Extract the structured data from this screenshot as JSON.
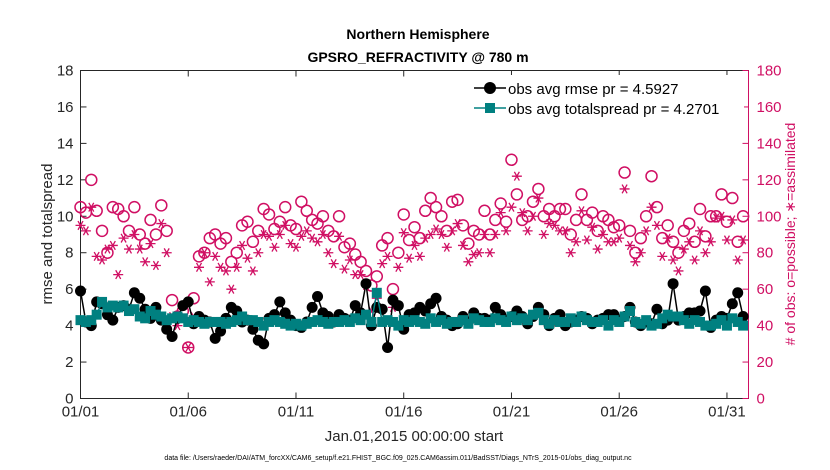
{
  "chart_data": {
    "type": "line",
    "title": "Northern Hemisphere",
    "subtitle": "GPSRO_REFRACTIVITY @ 780 m",
    "xlabel": "Jan.01,2015 00:00:00 start",
    "ylabel": "rmse and totalspread",
    "y2label": "# of obs: o=possible; ∗=assimilated",
    "footer": "data file: /Users/raeder/DAI/ATM_forcXX/CAM6_setup/f.e21.FHIST_BGC.f09_025.CAM6assim.011/BadSST/Diags_NTrS_2015-01/obs_diag_output.nc",
    "xlim": [
      1,
      32
    ],
    "ylim": [
      0,
      18
    ],
    "y2lim": [
      0,
      180
    ],
    "xticks": [
      1,
      6,
      11,
      16,
      21,
      26,
      31
    ],
    "xticklabels": [
      "01/01",
      "01/06",
      "01/11",
      "01/16",
      "01/21",
      "01/26",
      "01/31"
    ],
    "yticks": [
      0,
      2,
      4,
      6,
      8,
      10,
      12,
      14,
      16,
      18
    ],
    "y2ticks": [
      0,
      20,
      40,
      60,
      80,
      100,
      120,
      140,
      160,
      180
    ],
    "legend_position": "top-right",
    "colors": {
      "rmse": "#000000",
      "spread": "#008080",
      "obs": "#d00f63",
      "axis": "#262626"
    },
    "series": [
      {
        "name": "obs avg rmse pr = 4.5927",
        "axis": "left",
        "marker": "circle",
        "x": [
          1.0,
          1.25,
          1.5,
          1.75,
          2.0,
          2.25,
          2.5,
          2.75,
          3.0,
          3.25,
          3.5,
          3.75,
          4.0,
          4.25,
          4.5,
          4.75,
          5.0,
          5.25,
          5.5,
          5.75,
          6.0,
          6.25,
          6.5,
          6.75,
          7.0,
          7.25,
          7.5,
          7.75,
          8.0,
          8.25,
          8.5,
          8.75,
          9.0,
          9.25,
          9.5,
          9.75,
          10.0,
          10.25,
          10.5,
          10.75,
          11.0,
          11.25,
          11.5,
          11.75,
          12.0,
          12.25,
          12.5,
          12.75,
          13.0,
          13.25,
          13.5,
          13.75,
          14.0,
          14.25,
          14.5,
          14.75,
          15.0,
          15.25,
          15.5,
          15.75,
          16.0,
          16.25,
          16.5,
          16.75,
          17.0,
          17.25,
          17.5,
          17.75,
          18.0,
          18.25,
          18.5,
          18.75,
          19.0,
          19.25,
          19.5,
          19.75,
          20.0,
          20.25,
          20.5,
          20.75,
          21.0,
          21.25,
          21.5,
          21.75,
          22.0,
          22.25,
          22.5,
          22.75,
          23.0,
          23.25,
          23.5,
          23.75,
          24.0,
          24.25,
          24.5,
          24.75,
          25.0,
          25.25,
          25.5,
          25.75,
          26.0,
          26.25,
          26.5,
          26.75,
          27.0,
          27.25,
          27.5,
          27.75,
          28.0,
          28.25,
          28.5,
          28.75,
          29.0,
          29.25,
          29.5,
          29.75,
          30.0,
          30.25,
          30.5,
          30.75,
          31.0,
          31.25,
          31.5,
          31.75
        ],
        "values": [
          5.9,
          4.2,
          4.0,
          5.3,
          5.2,
          4.6,
          4.3,
          5.0,
          5.1,
          4.9,
          5.8,
          5.5,
          4.9,
          4.4,
          5.0,
          4.3,
          3.8,
          3.4,
          4.4,
          5.1,
          5.3,
          4.1,
          4.5,
          4.3,
          4.2,
          3.3,
          3.7,
          4.4,
          5.0,
          4.8,
          4.2,
          4.3,
          3.8,
          3.2,
          3.0,
          4.4,
          4.6,
          5.3,
          4.7,
          4.3,
          4.0,
          3.9,
          4.2,
          5.0,
          5.6,
          4.7,
          4.5,
          4.2,
          4.6,
          4.4,
          4.3,
          5.1,
          4.7,
          6.3,
          4.0,
          5.0,
          4.9,
          2.8,
          5.4,
          5.1,
          3.8,
          4.6,
          4.7,
          5.0,
          4.8,
          5.2,
          5.5,
          4.5,
          4.3,
          4.0,
          4.1,
          4.5,
          4.2,
          4.7,
          4.4,
          4.4,
          4.3,
          5.0,
          4.6,
          4.3,
          4.5,
          4.8,
          4.5,
          4.1,
          4.5,
          5.0,
          4.6,
          4.0,
          4.4,
          4.6,
          4.0,
          4.2,
          4.3,
          4.5,
          4.4,
          4.1,
          4.3,
          4.4,
          4.6,
          4.6,
          4.3,
          4.5,
          5.0,
          4.2,
          4.0,
          4.2,
          4.1,
          4.9,
          4.1,
          4.3,
          6.3,
          4.3,
          4.5,
          4.7,
          4.7,
          4.8,
          5.9,
          3.9,
          4.3,
          4.5,
          4.4,
          5.2,
          5.8,
          4.5
        ]
      },
      {
        "name": "obs avg totalspread pr = 4.2701",
        "axis": "left",
        "marker": "square",
        "x": [
          1.0,
          1.25,
          1.5,
          1.75,
          2.0,
          2.25,
          2.5,
          2.75,
          3.0,
          3.25,
          3.5,
          3.75,
          4.0,
          4.25,
          4.5,
          4.75,
          5.0,
          5.25,
          5.5,
          5.75,
          6.0,
          6.25,
          6.5,
          6.75,
          7.0,
          7.25,
          7.5,
          7.75,
          8.0,
          8.25,
          8.5,
          8.75,
          9.0,
          9.25,
          9.5,
          9.75,
          10.0,
          10.25,
          10.5,
          10.75,
          11.0,
          11.25,
          11.5,
          11.75,
          12.0,
          12.25,
          12.5,
          12.75,
          13.0,
          13.25,
          13.5,
          13.75,
          14.0,
          14.25,
          14.5,
          14.75,
          15.0,
          15.25,
          15.5,
          15.75,
          16.0,
          16.25,
          16.5,
          16.75,
          17.0,
          17.25,
          17.5,
          17.75,
          18.0,
          18.25,
          18.5,
          18.75,
          19.0,
          19.25,
          19.5,
          19.75,
          20.0,
          20.25,
          20.5,
          20.75,
          21.0,
          21.25,
          21.5,
          21.75,
          22.0,
          22.25,
          22.5,
          22.75,
          23.0,
          23.25,
          23.5,
          23.75,
          24.0,
          24.25,
          24.5,
          24.75,
          25.0,
          25.25,
          25.5,
          25.75,
          26.0,
          26.25,
          26.5,
          26.75,
          27.0,
          27.25,
          27.5,
          27.75,
          28.0,
          28.25,
          28.5,
          28.75,
          29.0,
          29.25,
          29.5,
          29.75,
          30.0,
          30.25,
          30.5,
          30.75,
          31.0,
          31.25,
          31.5,
          31.75
        ],
        "values": [
          4.3,
          4.2,
          4.3,
          4.6,
          5.3,
          5.0,
          5.1,
          5.0,
          5.1,
          4.8,
          4.9,
          4.5,
          4.4,
          4.8,
          4.6,
          4.5,
          4.3,
          4.4,
          4.5,
          4.4,
          4.2,
          4.3,
          4.2,
          4.1,
          4.2,
          4.2,
          4.2,
          4.1,
          4.2,
          4.3,
          4.5,
          4.3,
          4.3,
          4.2,
          4.0,
          4.2,
          4.3,
          4.2,
          4.1,
          4.0,
          4.1,
          4.0,
          4.1,
          4.2,
          4.3,
          4.2,
          4.1,
          4.2,
          4.2,
          4.3,
          4.2,
          4.4,
          4.3,
          4.6,
          4.2,
          5.8,
          4.2,
          4.3,
          4.2,
          4.0,
          4.3,
          4.2,
          4.3,
          4.2,
          4.1,
          4.4,
          4.2,
          4.3,
          4.1,
          4.2,
          4.2,
          4.3,
          4.1,
          4.4,
          4.3,
          4.2,
          4.2,
          4.4,
          4.3,
          4.2,
          4.5,
          4.3,
          4.4,
          4.3,
          4.6,
          4.7,
          4.3,
          4.1,
          4.3,
          4.2,
          4.2,
          4.4,
          4.2,
          4.5,
          4.3,
          4.2,
          4.2,
          4.3,
          4.0,
          4.3,
          4.2,
          4.5,
          4.8,
          4.2,
          4.1,
          4.3,
          4.0,
          4.1,
          4.4,
          4.6,
          4.5,
          4.5,
          4.3,
          4.1,
          4.3,
          4.2,
          4.0,
          4.0,
          4.1,
          4.3,
          4.0,
          4.4,
          4.2,
          4.0
        ]
      },
      {
        "name": "# of obs possible",
        "axis": "right",
        "marker": "open-circle",
        "x": [
          1.0,
          1.25,
          1.5,
          1.75,
          2.0,
          2.25,
          2.5,
          2.75,
          3.0,
          3.25,
          3.5,
          3.75,
          4.0,
          4.25,
          4.5,
          4.75,
          5.0,
          5.25,
          5.5,
          5.75,
          6.0,
          6.25,
          6.5,
          6.75,
          7.0,
          7.25,
          7.5,
          7.75,
          8.0,
          8.25,
          8.5,
          8.75,
          9.0,
          9.25,
          9.5,
          9.75,
          10.0,
          10.25,
          10.5,
          10.75,
          11.0,
          11.25,
          11.5,
          11.75,
          12.0,
          12.25,
          12.5,
          12.75,
          13.0,
          13.25,
          13.5,
          13.75,
          14.0,
          14.25,
          14.5,
          14.75,
          15.0,
          15.25,
          15.5,
          15.75,
          16.0,
          16.25,
          16.5,
          16.75,
          17.0,
          17.25,
          17.5,
          17.75,
          18.0,
          18.25,
          18.5,
          18.75,
          19.0,
          19.25,
          19.5,
          19.75,
          20.0,
          20.25,
          20.5,
          20.75,
          21.0,
          21.25,
          21.5,
          21.75,
          22.0,
          22.25,
          22.5,
          22.75,
          23.0,
          23.25,
          23.5,
          23.75,
          24.0,
          24.25,
          24.5,
          24.75,
          25.0,
          25.25,
          25.5,
          25.75,
          26.0,
          26.25,
          26.5,
          26.75,
          27.0,
          27.25,
          27.5,
          27.75,
          28.0,
          28.25,
          28.5,
          28.75,
          29.0,
          29.25,
          29.5,
          29.75,
          30.0,
          30.25,
          30.5,
          30.75,
          31.0,
          31.25,
          31.5,
          31.75
        ],
        "values": [
          105,
          102,
          120,
          103,
          92,
          80,
          105,
          104,
          100,
          92,
          105,
          90,
          85,
          98,
          90,
          106,
          92,
          54,
          45,
          48,
          28,
          55,
          78,
          80,
          88,
          90,
          85,
          88,
          75,
          80,
          95,
          97,
          86,
          92,
          104,
          101,
          93,
          97,
          105,
          95,
          93,
          108,
          103,
          98,
          96,
          100,
          92,
          89,
          100,
          83,
          85,
          79,
          75,
          70,
          62,
          67,
          84,
          88,
          60,
          80,
          101,
          87,
          94,
          88,
          103,
          110,
          105,
          100,
          92,
          108,
          109,
          95,
          85,
          92,
          90,
          103,
          90,
          98,
          107,
          97,
          131,
          112,
          98,
          100,
          108,
          115,
          100,
          104,
          100,
          104,
          104,
          90,
          98,
          112,
          98,
          102,
          92,
          100,
          98,
          94,
          95,
          124,
          92,
          80,
          88,
          100,
          122,
          105,
          88,
          95,
          86,
          80,
          92,
          96,
          86,
          104,
          89,
          100,
          100,
          112,
          97,
          110,
          86,
          100
        ]
      },
      {
        "name": "# of obs assimilated",
        "axis": "right",
        "marker": "asterisk",
        "x": [
          1.0,
          1.25,
          1.5,
          1.75,
          2.0,
          2.25,
          2.5,
          2.75,
          3.0,
          3.25,
          3.5,
          3.75,
          4.0,
          4.25,
          4.5,
          4.75,
          5.0,
          5.25,
          5.5,
          5.75,
          6.0,
          6.25,
          6.5,
          6.75,
          7.0,
          7.25,
          7.5,
          7.75,
          8.0,
          8.25,
          8.5,
          8.75,
          9.0,
          9.25,
          9.5,
          9.75,
          10.0,
          10.25,
          10.5,
          10.75,
          11.0,
          11.25,
          11.5,
          11.75,
          12.0,
          12.25,
          12.5,
          12.75,
          13.0,
          13.25,
          13.5,
          13.75,
          14.0,
          14.25,
          14.5,
          14.75,
          15.0,
          15.25,
          15.5,
          15.75,
          16.0,
          16.25,
          16.5,
          16.75,
          17.0,
          17.25,
          17.5,
          17.75,
          18.0,
          18.25,
          18.5,
          18.75,
          19.0,
          19.25,
          19.5,
          19.75,
          20.0,
          20.25,
          20.5,
          20.75,
          21.0,
          21.25,
          21.5,
          21.75,
          22.0,
          22.25,
          22.5,
          22.75,
          23.0,
          23.25,
          23.5,
          23.75,
          24.0,
          24.25,
          24.5,
          24.75,
          25.0,
          25.25,
          25.5,
          25.75,
          26.0,
          26.25,
          26.5,
          26.75,
          27.0,
          27.25,
          27.5,
          27.75,
          28.0,
          28.25,
          28.5,
          28.75,
          29.0,
          29.25,
          29.5,
          29.75,
          30.0,
          30.25,
          30.5,
          30.75,
          31.0,
          31.25,
          31.5,
          31.75
        ],
        "values": [
          95,
          92,
          105,
          78,
          76,
          82,
          84,
          68,
          88,
          82,
          90,
          82,
          75,
          85,
          73,
          96,
          80,
          45,
          40,
          44,
          28,
          45,
          72,
          80,
          64,
          78,
          72,
          70,
          60,
          72,
          84,
          77,
          70,
          80,
          90,
          89,
          83,
          90,
          95,
          85,
          83,
          89,
          92,
          88,
          86,
          90,
          80,
          74,
          89,
          71,
          76,
          68,
          68,
          62,
          48,
          55,
          74,
          78,
          50,
          72,
          91,
          77,
          84,
          78,
          88,
          90,
          93,
          90,
          83,
          92,
          96,
          84,
          75,
          79,
          80,
          90,
          80,
          90,
          102,
          92,
          105,
          122,
          102,
          92,
          100,
          110,
          90,
          96,
          95,
          92,
          92,
          80,
          86,
          103,
          87,
          94,
          82,
          90,
          86,
          86,
          88,
          115,
          84,
          75,
          80,
          92,
          105,
          95,
          78,
          88,
          76,
          70,
          82,
          86,
          76,
          92,
          80,
          86,
          99,
          100,
          87,
          98,
          76,
          87
        ]
      }
    ]
  }
}
